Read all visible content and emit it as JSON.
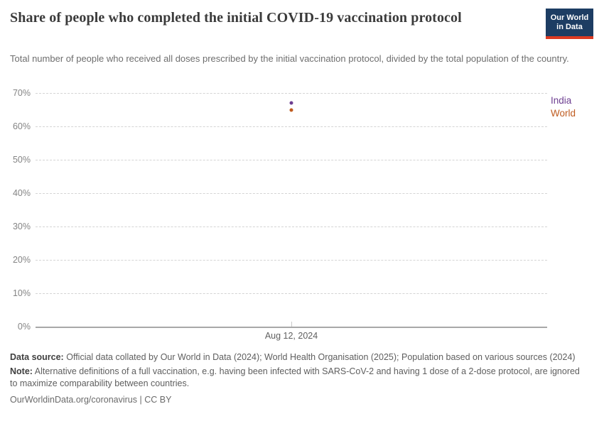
{
  "header": {
    "title": "Share of people who completed the initial COVID-19 vaccination protocol",
    "subtitle": "Total number of people who received all doses prescribed by the initial vaccination protocol, divided by the total population of the country.",
    "logo": {
      "line1": "Our World",
      "line2": "in Data"
    },
    "logo_colors": {
      "background": "#1d3d63",
      "underline": "#dc3a22"
    }
  },
  "chart_data": {
    "type": "scatter",
    "title": "Share of people who completed the initial COVID-19 vaccination protocol",
    "x": [
      "Aug 12, 2024"
    ],
    "x_tick_label": "Aug 12, 2024",
    "series": [
      {
        "name": "India",
        "values": [
          67
        ],
        "color": "#6d3e91"
      },
      {
        "name": "World",
        "values": [
          65
        ],
        "color": "#bf5b1f"
      }
    ],
    "ylim": [
      0,
      70
    ],
    "ytick_values": [
      0,
      10,
      20,
      30,
      40,
      50,
      60,
      70
    ],
    "ytick_suffix": "%",
    "grid": "horizontal-dashed",
    "legend_position": "right"
  },
  "footer": {
    "data_source_label": "Data source:",
    "data_source_text": "Official data collated by Our World in Data (2024); World Health Organisation (2025); Population based on various sources (2024)",
    "note_label": "Note:",
    "note_text": "Alternative definitions of a full vaccination, e.g. having been infected with SARS-CoV-2 and having 1 dose of a 2-dose protocol, are ignored to maximize comparability between countries.",
    "url": "OurWorldinData.org/coronavirus",
    "license_suffix": " | CC BY"
  }
}
